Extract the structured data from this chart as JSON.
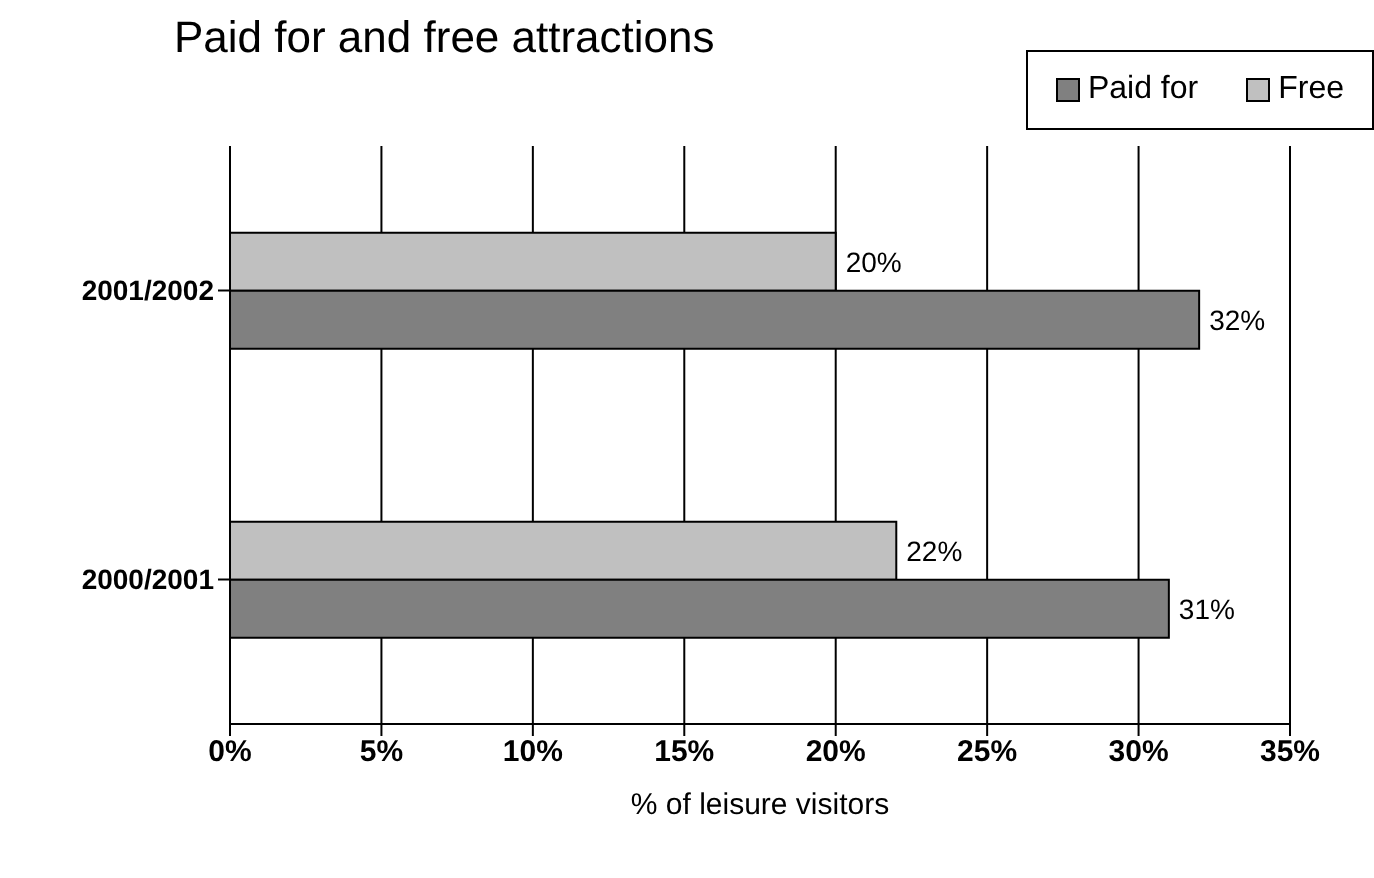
{
  "chart_data": {
    "type": "bar",
    "orientation": "horizontal",
    "title": "Paid for and free attractions",
    "xlabel": "% of leisure  visitors",
    "categories": [
      "2001/2002",
      "2000/2001"
    ],
    "series": [
      {
        "name": "Paid for",
        "color": "#808080",
        "values": [
          32,
          31
        ],
        "value_labels": [
          "32%",
          "31%"
        ]
      },
      {
        "name": "Free",
        "color": "#c0c0c0",
        "values": [
          20,
          22
        ],
        "value_labels": [
          "20%",
          "22%"
        ]
      }
    ],
    "xlim": [
      0,
      35
    ],
    "xticks": [
      {
        "value": 0,
        "label": "0%"
      },
      {
        "value": 5,
        "label": "5%"
      },
      {
        "value": 10,
        "label": "10%"
      },
      {
        "value": 15,
        "label": "15%"
      },
      {
        "value": 20,
        "label": "20%"
      },
      {
        "value": 25,
        "label": "25%"
      },
      {
        "value": 30,
        "label": "30%"
      },
      {
        "value": 35,
        "label": "35%"
      }
    ],
    "grid": "x",
    "legend": "top right"
  }
}
